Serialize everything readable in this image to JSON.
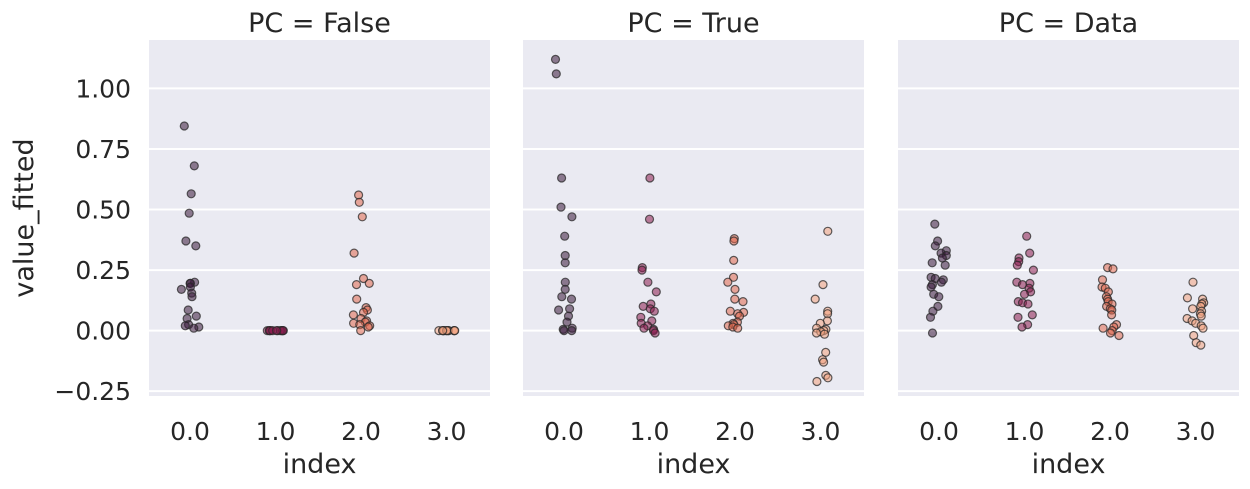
{
  "figure": {
    "ylabel": "value_fitted",
    "xlabel": "index",
    "yticks": [
      "1.00",
      "0.75",
      "0.50",
      "0.25",
      "0.00",
      "−0.25"
    ],
    "xticks": [
      "0.0",
      "1.0",
      "2.0",
      "3.0"
    ]
  },
  "chart_data": [
    {
      "type": "scatter",
      "title": "PC = False",
      "xlabel": "index",
      "ylabel": "value_fitted",
      "categories": [
        "0.0",
        "1.0",
        "2.0",
        "3.0"
      ],
      "ylim": [
        -0.27,
        1.2
      ],
      "grid": true,
      "colors": [
        "#3b1a3d",
        "#8a1c4f",
        "#e0684f",
        "#f2a37f"
      ],
      "points": [
        [
          0,
          0.845
        ],
        [
          0,
          0.68
        ],
        [
          0,
          0.565
        ],
        [
          0,
          0.485
        ],
        [
          0,
          0.37
        ],
        [
          0,
          0.35
        ],
        [
          0,
          0.2
        ],
        [
          0,
          0.195
        ],
        [
          0,
          0.195
        ],
        [
          0,
          0.18
        ],
        [
          0,
          0.17
        ],
        [
          0,
          0.155
        ],
        [
          0,
          0.14
        ],
        [
          0,
          0.085
        ],
        [
          0,
          0.06
        ],
        [
          0,
          0.05
        ],
        [
          0,
          0.025
        ],
        [
          0,
          0.02
        ],
        [
          0,
          0.015
        ],
        [
          0,
          0.01
        ],
        [
          1,
          0.0
        ],
        [
          1,
          0.0
        ],
        [
          1,
          0.0
        ],
        [
          1,
          0.0
        ],
        [
          1,
          0.0
        ],
        [
          1,
          0.0
        ],
        [
          1,
          0.0
        ],
        [
          1,
          0.0
        ],
        [
          1,
          0.0
        ],
        [
          1,
          0.0
        ],
        [
          1,
          0.0
        ],
        [
          1,
          0.0
        ],
        [
          2,
          0.56
        ],
        [
          2,
          0.53
        ],
        [
          2,
          0.47
        ],
        [
          2,
          0.32
        ],
        [
          2,
          0.215
        ],
        [
          2,
          0.195
        ],
        [
          2,
          0.19
        ],
        [
          2,
          0.13
        ],
        [
          2,
          0.095
        ],
        [
          2,
          0.085
        ],
        [
          2,
          0.075
        ],
        [
          2,
          0.065
        ],
        [
          2,
          0.05
        ],
        [
          2,
          0.04
        ],
        [
          2,
          0.035
        ],
        [
          2,
          0.03
        ],
        [
          2,
          0.025
        ],
        [
          2,
          0.02
        ],
        [
          2,
          0.015
        ],
        [
          2,
          0.0
        ],
        [
          3,
          0.0
        ],
        [
          3,
          0.0
        ],
        [
          3,
          0.0
        ],
        [
          3,
          0.0
        ],
        [
          3,
          0.0
        ],
        [
          3,
          0.0
        ],
        [
          3,
          0.0
        ],
        [
          3,
          0.0
        ],
        [
          3,
          0.0
        ],
        [
          3,
          0.0
        ],
        [
          3,
          0.0
        ],
        [
          3,
          0.0
        ]
      ]
    },
    {
      "type": "scatter",
      "title": "PC = True",
      "xlabel": "index",
      "ylabel": "value_fitted",
      "categories": [
        "0.0",
        "1.0",
        "2.0",
        "3.0"
      ],
      "ylim": [
        -0.27,
        1.2
      ],
      "grid": true,
      "colors": [
        "#3b1a3d",
        "#8a1c4f",
        "#e0684f",
        "#f2a37f"
      ],
      "points": [
        [
          0,
          1.12
        ],
        [
          0,
          1.06
        ],
        [
          0,
          0.63
        ],
        [
          0,
          0.51
        ],
        [
          0,
          0.47
        ],
        [
          0,
          0.39
        ],
        [
          0,
          0.31
        ],
        [
          0,
          0.28
        ],
        [
          0,
          0.2
        ],
        [
          0,
          0.17
        ],
        [
          0,
          0.14
        ],
        [
          0,
          0.13
        ],
        [
          0,
          0.09
        ],
        [
          0,
          0.085
        ],
        [
          0,
          0.06
        ],
        [
          0,
          0.035
        ],
        [
          0,
          0.01
        ],
        [
          0,
          0.005
        ],
        [
          0,
          0.0
        ],
        [
          0,
          0.0
        ],
        [
          1,
          0.63
        ],
        [
          1,
          0.46
        ],
        [
          1,
          0.26
        ],
        [
          1,
          0.25
        ],
        [
          1,
          0.2
        ],
        [
          1,
          0.16
        ],
        [
          1,
          0.11
        ],
        [
          1,
          0.1
        ],
        [
          1,
          0.09
        ],
        [
          1,
          0.08
        ],
        [
          1,
          0.055
        ],
        [
          1,
          0.04
        ],
        [
          1,
          0.03
        ],
        [
          1,
          0.02
        ],
        [
          1,
          0.01
        ],
        [
          1,
          0.005
        ],
        [
          1,
          0.0
        ],
        [
          1,
          -0.01
        ],
        [
          2,
          0.38
        ],
        [
          2,
          0.37
        ],
        [
          2,
          0.29
        ],
        [
          2,
          0.22
        ],
        [
          2,
          0.2
        ],
        [
          2,
          0.17
        ],
        [
          2,
          0.13
        ],
        [
          2,
          0.12
        ],
        [
          2,
          0.08
        ],
        [
          2,
          0.075
        ],
        [
          2,
          0.07
        ],
        [
          2,
          0.06
        ],
        [
          2,
          0.035
        ],
        [
          2,
          0.03
        ],
        [
          2,
          0.025
        ],
        [
          2,
          0.02
        ],
        [
          2,
          0.015
        ],
        [
          2,
          0.01
        ],
        [
          3,
          0.41
        ],
        [
          3,
          0.19
        ],
        [
          3,
          0.13
        ],
        [
          3,
          0.08
        ],
        [
          3,
          0.07
        ],
        [
          3,
          0.04
        ],
        [
          3,
          0.03
        ],
        [
          3,
          0.01
        ],
        [
          3,
          0.005
        ],
        [
          3,
          0.0
        ],
        [
          3,
          -0.005
        ],
        [
          3,
          -0.01
        ],
        [
          3,
          -0.015
        ],
        [
          3,
          -0.09
        ],
        [
          3,
          -0.12
        ],
        [
          3,
          -0.13
        ],
        [
          3,
          -0.185
        ],
        [
          3,
          -0.195
        ],
        [
          3,
          -0.21
        ]
      ]
    },
    {
      "type": "scatter",
      "title": "PC = Data",
      "xlabel": "index",
      "ylabel": "value_fitted",
      "categories": [
        "0.0",
        "1.0",
        "2.0",
        "3.0"
      ],
      "ylim": [
        -0.27,
        1.2
      ],
      "grid": true,
      "colors": [
        "#3b1a3d",
        "#8a1c4f",
        "#e0684f",
        "#f2a37f"
      ],
      "points": [
        [
          0,
          0.44
        ],
        [
          0,
          0.37
        ],
        [
          0,
          0.35
        ],
        [
          0,
          0.33
        ],
        [
          0,
          0.32
        ],
        [
          0,
          0.31
        ],
        [
          0,
          0.3
        ],
        [
          0,
          0.28
        ],
        [
          0,
          0.27
        ],
        [
          0,
          0.22
        ],
        [
          0,
          0.215
        ],
        [
          0,
          0.21
        ],
        [
          0,
          0.2
        ],
        [
          0,
          0.19
        ],
        [
          0,
          0.18
        ],
        [
          0,
          0.15
        ],
        [
          0,
          0.14
        ],
        [
          0,
          0.1
        ],
        [
          0,
          0.08
        ],
        [
          0,
          0.055
        ],
        [
          0,
          -0.01
        ],
        [
          1,
          0.39
        ],
        [
          1,
          0.32
        ],
        [
          1,
          0.3
        ],
        [
          1,
          0.285
        ],
        [
          1,
          0.27
        ],
        [
          1,
          0.25
        ],
        [
          1,
          0.2
        ],
        [
          1,
          0.195
        ],
        [
          1,
          0.19
        ],
        [
          1,
          0.175
        ],
        [
          1,
          0.16
        ],
        [
          1,
          0.15
        ],
        [
          1,
          0.12
        ],
        [
          1,
          0.115
        ],
        [
          1,
          0.11
        ],
        [
          1,
          0.065
        ],
        [
          1,
          0.055
        ],
        [
          1,
          0.025
        ],
        [
          1,
          0.015
        ],
        [
          2,
          0.26
        ],
        [
          2,
          0.255
        ],
        [
          2,
          0.21
        ],
        [
          2,
          0.18
        ],
        [
          2,
          0.175
        ],
        [
          2,
          0.16
        ],
        [
          2,
          0.14
        ],
        [
          2,
          0.13
        ],
        [
          2,
          0.12
        ],
        [
          2,
          0.11
        ],
        [
          2,
          0.1
        ],
        [
          2,
          0.09
        ],
        [
          2,
          0.085
        ],
        [
          2,
          0.065
        ],
        [
          2,
          0.025
        ],
        [
          2,
          0.015
        ],
        [
          2,
          0.01
        ],
        [
          2,
          0.0
        ],
        [
          2,
          -0.01
        ],
        [
          2,
          -0.02
        ],
        [
          3,
          0.2
        ],
        [
          3,
          0.135
        ],
        [
          3,
          0.13
        ],
        [
          3,
          0.115
        ],
        [
          3,
          0.11
        ],
        [
          3,
          0.1
        ],
        [
          3,
          0.09
        ],
        [
          3,
          0.08
        ],
        [
          3,
          0.07
        ],
        [
          3,
          0.06
        ],
        [
          3,
          0.05
        ],
        [
          3,
          0.04
        ],
        [
          3,
          0.03
        ],
        [
          3,
          0.02
        ],
        [
          3,
          0.01
        ],
        [
          3,
          -0.02
        ],
        [
          3,
          -0.05
        ],
        [
          3,
          -0.06
        ]
      ]
    }
  ]
}
